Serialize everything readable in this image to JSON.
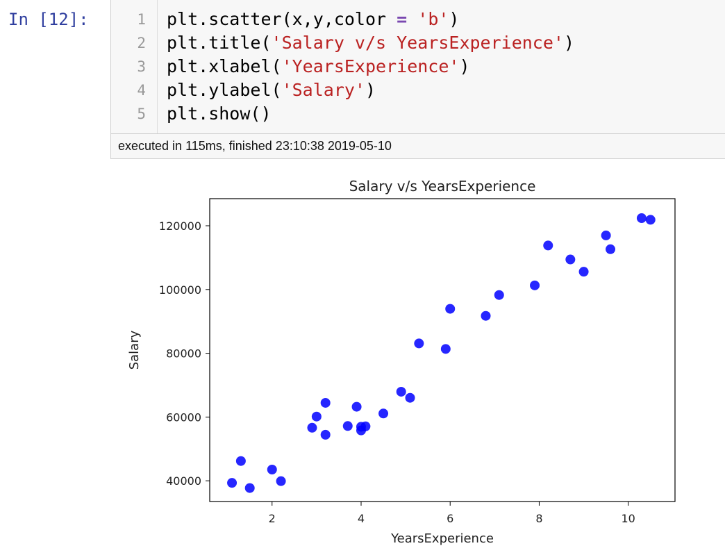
{
  "cell": {
    "prompt": "In [12]:",
    "code_lines": [
      {
        "num": "1",
        "parts": [
          {
            "t": "plt.scatter(x,y,color "
          },
          {
            "t": "=",
            "c": "op"
          },
          {
            "t": " "
          },
          {
            "t": "'b'",
            "c": "str"
          },
          {
            "t": ")"
          }
        ]
      },
      {
        "num": "2",
        "parts": [
          {
            "t": "plt.title("
          },
          {
            "t": "'Salary v/s YearsExperience'",
            "c": "str"
          },
          {
            "t": ")"
          }
        ]
      },
      {
        "num": "3",
        "parts": [
          {
            "t": "plt.xlabel("
          },
          {
            "t": "'YearsExperience'",
            "c": "str"
          },
          {
            "t": ")"
          }
        ]
      },
      {
        "num": "4",
        "parts": [
          {
            "t": "plt.ylabel("
          },
          {
            "t": "'Salary'",
            "c": "str"
          },
          {
            "t": ")"
          }
        ]
      },
      {
        "num": "5",
        "parts": [
          {
            "t": "plt.show()"
          }
        ]
      }
    ],
    "status": "executed in 115ms, finished 23:10:38 2019-05-10"
  },
  "chart_data": {
    "type": "scatter",
    "title": "Salary v/s YearsExperience",
    "xlabel": "YearsExperience",
    "ylabel": "Salary",
    "xlim": [
      0.6,
      11.05
    ],
    "ylim": [
      33500,
      128500
    ],
    "xticks": [
      2,
      4,
      6,
      8,
      10
    ],
    "yticks": [
      40000,
      60000,
      80000,
      100000,
      120000
    ],
    "grid": false,
    "marker_color": "#0000ff",
    "x": [
      1.1,
      1.3,
      1.5,
      2.0,
      2.2,
      2.9,
      3.0,
      3.2,
      3.2,
      3.7,
      3.9,
      4.0,
      4.0,
      4.1,
      4.5,
      4.9,
      5.1,
      5.3,
      5.9,
      6.0,
      6.8,
      7.1,
      7.9,
      8.2,
      8.7,
      9.0,
      9.5,
      9.6,
      10.3,
      10.5
    ],
    "y": [
      39343,
      46205,
      37731,
      43525,
      39891,
      56642,
      60150,
      54445,
      64445,
      57189,
      63218,
      55794,
      56957,
      57081,
      61111,
      67938,
      66029,
      83088,
      81363,
      93940,
      91738,
      98273,
      101302,
      113812,
      109431,
      105582,
      116969,
      112635,
      122391,
      121872
    ]
  }
}
